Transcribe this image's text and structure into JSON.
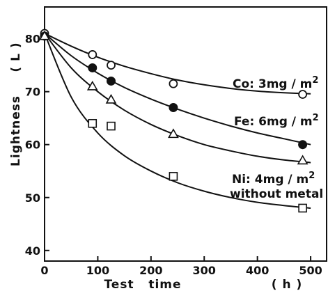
{
  "chart_data": {
    "type": "scatter",
    "title": "",
    "xlabel": "Test   time",
    "xunit": "( h )",
    "ylabel": "Lightness",
    "yunit": "( L )",
    "xlim": [
      0,
      530
    ],
    "ylim": [
      38,
      86
    ],
    "xticks": [
      0,
      100,
      200,
      300,
      400,
      500
    ],
    "yticks": [
      40,
      50,
      60,
      70,
      80
    ],
    "grid": false,
    "legend": "none",
    "series": [
      {
        "name": "Co: 3mg/m2",
        "label_main": "Co: 3mg / m",
        "label_sup": "2",
        "marker": "open-circle",
        "x": [
          0,
          90,
          125,
          242,
          485
        ],
        "y": [
          81,
          77,
          75,
          71.5,
          69.5
        ],
        "curve": [
          [
            0,
            81.0
          ],
          [
            50,
            78.6
          ],
          [
            100,
            76.5
          ],
          [
            150,
            74.8
          ],
          [
            200,
            73.4
          ],
          [
            250,
            72.2
          ],
          [
            300,
            71.3
          ],
          [
            350,
            70.6
          ],
          [
            400,
            70.1
          ],
          [
            450,
            69.8
          ],
          [
            500,
            69.6
          ]
        ]
      },
      {
        "name": "Fe: 6mg/m2",
        "label_main": "Fe: 6mg / m",
        "label_sup": "2",
        "marker": "filled-circle",
        "x": [
          0,
          90,
          125,
          242,
          485
        ],
        "y": [
          80.5,
          74.5,
          72,
          67,
          60
        ],
        "curve": [
          [
            0,
            81.0
          ],
          [
            50,
            76.8
          ],
          [
            100,
            73.5
          ],
          [
            150,
            70.8
          ],
          [
            200,
            68.6
          ],
          [
            250,
            66.7
          ],
          [
            300,
            65.0
          ],
          [
            350,
            63.5
          ],
          [
            400,
            62.2
          ],
          [
            450,
            61.1
          ],
          [
            500,
            60.0
          ]
        ]
      },
      {
        "name": "Ni: 4mg/m2",
        "label_main": "Ni: 4mg / m",
        "label_sup": "2",
        "marker": "open-triangle",
        "x": [
          0,
          90,
          125,
          242,
          485
        ],
        "y": [
          80.5,
          71,
          68.5,
          62,
          57
        ],
        "curve": [
          [
            0,
            81.0
          ],
          [
            50,
            74.5
          ],
          [
            100,
            70.0
          ],
          [
            150,
            66.5
          ],
          [
            200,
            63.8
          ],
          [
            250,
            61.7
          ],
          [
            300,
            60.0
          ],
          [
            350,
            58.8
          ],
          [
            400,
            57.8
          ],
          [
            450,
            57.1
          ],
          [
            500,
            56.6
          ]
        ]
      },
      {
        "name": "without metal",
        "label_main": "without metal",
        "label_sup": "",
        "marker": "open-square",
        "x": [
          90,
          125,
          242,
          485
        ],
        "y": [
          64,
          63.5,
          54,
          48
        ],
        "curve": [
          [
            0,
            81.0
          ],
          [
            50,
            69.0
          ],
          [
            100,
            62.2
          ],
          [
            150,
            57.9
          ],
          [
            200,
            55.0
          ],
          [
            250,
            52.8
          ],
          [
            300,
            51.2
          ],
          [
            350,
            50.0
          ],
          [
            400,
            49.1
          ],
          [
            450,
            48.5
          ],
          [
            500,
            48.0
          ]
        ]
      }
    ]
  }
}
